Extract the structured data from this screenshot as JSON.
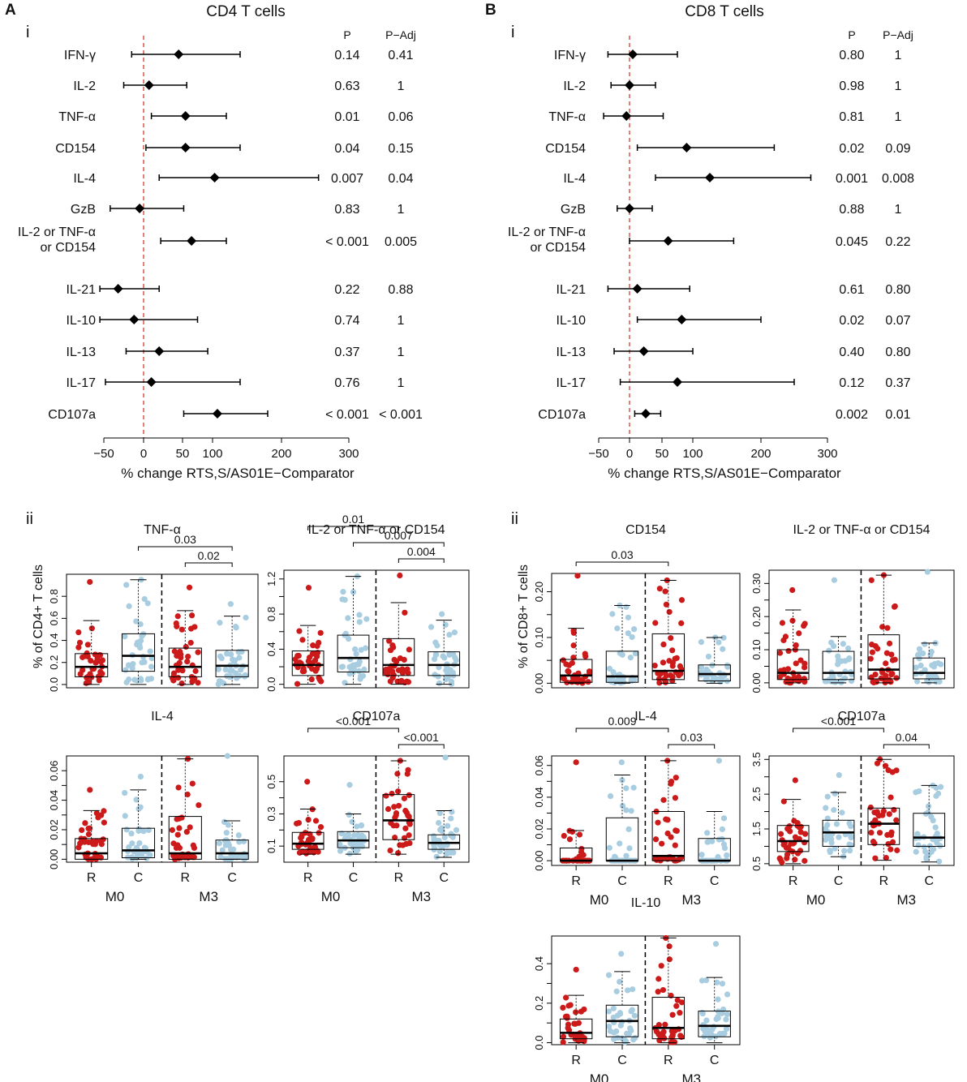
{
  "figure": {
    "panel_a": {
      "letter": "A",
      "title": "CD4 T cells",
      "sub_i": "i",
      "sub_ii": "ii"
    },
    "panel_b": {
      "letter": "B",
      "title": "CD8 T cells",
      "sub_i": "i",
      "sub_ii": "ii"
    },
    "x_axis_label": "% change RTS,S/AS01E−Comparator",
    "col_p": "P",
    "col_padj": "P−Adj",
    "y_label_cd4": "% of CD4+ T cells",
    "y_label_cd8": "% of CD8+ T cells",
    "group_r": "R",
    "group_c": "C",
    "time_m0": "M0",
    "time_m3": "M3"
  },
  "colors": {
    "red": "#cc1a1a",
    "blue": "#a8cce0",
    "black": "#000000",
    "ref_line": "#d9392f"
  },
  "chart_data": [
    {
      "id": "cd4-forest",
      "type": "forest",
      "title": "CD4 T cells",
      "xlabel": "% change RTS,S/AS01E−Comparator",
      "xlim": [
        -50,
        300
      ],
      "xticks": [
        "−50",
        "0",
        "50",
        "100",
        "200",
        "300"
      ],
      "rows": [
        {
          "label": "IFN-γ",
          "est": 45,
          "lo": -15,
          "hi": 140,
          "p": "0.14",
          "padj": "0.41"
        },
        {
          "label": "IL-2",
          "est": 7,
          "lo": -25,
          "hi": 57,
          "p": "0.63",
          "padj": "1"
        },
        {
          "label": "TNF-α",
          "est": 55,
          "lo": 10,
          "hi": 120,
          "p": "0.01",
          "padj": "0.06"
        },
        {
          "label": "CD154",
          "est": 55,
          "lo": 3,
          "hi": 140,
          "p": "0.04",
          "padj": "0.15"
        },
        {
          "label": "IL-4",
          "est": 103,
          "lo": 20,
          "hi": 255,
          "p": "0.007",
          "padj": "0.04"
        },
        {
          "label": "GzB",
          "est": -5,
          "lo": -42,
          "hi": 52,
          "p": "0.83",
          "padj": "1"
        },
        {
          "label": "IL-2 or TNF-α or CD154",
          "est": 65,
          "lo": 22,
          "hi": 120,
          "p": "< 0.001",
          "padj": "0.005"
        },
        {
          "label": "IL-21",
          "est": -32,
          "lo": -55,
          "hi": 20,
          "p": "0.22",
          "padj": "0.88"
        },
        {
          "label": "IL-10",
          "est": -12,
          "lo": -55,
          "hi": 75,
          "p": "0.74",
          "padj": "1"
        },
        {
          "label": "IL-13",
          "est": 20,
          "lo": -22,
          "hi": 92,
          "p": "0.37",
          "padj": "1"
        },
        {
          "label": "IL-17",
          "est": 10,
          "lo": -48,
          "hi": 140,
          "p": "0.76",
          "padj": "1"
        },
        {
          "label": "CD107a",
          "est": 107,
          "lo": 52,
          "hi": 180,
          "p": "< 0.001",
          "padj": "< 0.001"
        }
      ]
    },
    {
      "id": "cd8-forest",
      "type": "forest",
      "title": "CD8 T cells",
      "xlabel": "% change RTS,S/AS01E−Comparator",
      "xlim": [
        -50,
        300
      ],
      "xticks": [
        "−50",
        "0",
        "50",
        "100",
        "200",
        "300"
      ],
      "rows": [
        {
          "label": "IFN-γ",
          "est": 5,
          "lo": -35,
          "hi": 75,
          "p": "0.80",
          "padj": "1"
        },
        {
          "label": "IL-2",
          "est": 0,
          "lo": -30,
          "hi": 40,
          "p": "0.98",
          "padj": "1"
        },
        {
          "label": "TNF-α",
          "est": -5,
          "lo": -42,
          "hi": 52,
          "p": "0.81",
          "padj": "1"
        },
        {
          "label": "CD154",
          "est": 90,
          "lo": 12,
          "hi": 220,
          "p": "0.02",
          "padj": "0.09"
        },
        {
          "label": "IL-4",
          "est": 125,
          "lo": 40,
          "hi": 275,
          "p": "0.001",
          "padj": "0.008"
        },
        {
          "label": "GzB",
          "est": 0,
          "lo": -20,
          "hi": 35,
          "p": "0.88",
          "padj": "1"
        },
        {
          "label": "IL-2 or TNF-α or CD154",
          "est": 60,
          "lo": 0,
          "hi": 160,
          "p": "0.045",
          "padj": "0.22"
        },
        {
          "label": "IL-21",
          "est": 12,
          "lo": -35,
          "hi": 95,
          "p": "0.61",
          "padj": "0.80"
        },
        {
          "label": "IL-10",
          "est": 82,
          "lo": 12,
          "hi": 200,
          "p": "0.02",
          "padj": "0.07"
        },
        {
          "label": "IL-13",
          "est": 22,
          "lo": -25,
          "hi": 100,
          "p": "0.40",
          "padj": "0.80"
        },
        {
          "label": "IL-17",
          "est": 75,
          "lo": -15,
          "hi": 250,
          "p": "0.12",
          "padj": "0.37"
        },
        {
          "label": "CD107a",
          "est": 25,
          "lo": 8,
          "hi": 48,
          "p": "0.002",
          "padj": "0.01"
        }
      ]
    },
    {
      "id": "cd4-tnfa",
      "type": "box",
      "title": "TNF-α",
      "ylim": [
        -0.03,
        1.0
      ],
      "yticks": [
        "0.0",
        "0.2",
        "0.4",
        "0.6",
        "0.8"
      ],
      "ytick_values": [
        0,
        0.2,
        0.4,
        0.6,
        0.8
      ],
      "groups": [
        {
          "label": "R",
          "time": "M0",
          "color": "red",
          "wlo": 0.0,
          "q1": 0.07,
          "med": 0.16,
          "q3": 0.28,
          "whi": 0.58,
          "max": 0.93
        },
        {
          "label": "C",
          "time": "M0",
          "color": "blue",
          "wlo": 0.0,
          "q1": 0.12,
          "med": 0.26,
          "q3": 0.46,
          "whi": 0.95,
          "max": 0.95
        },
        {
          "label": "R",
          "time": "M3",
          "color": "red",
          "wlo": 0.0,
          "q1": 0.07,
          "med": 0.16,
          "q3": 0.33,
          "whi": 0.67,
          "max": 0.88
        },
        {
          "label": "C",
          "time": "M3",
          "color": "blue",
          "wlo": 0.0,
          "q1": 0.07,
          "med": 0.17,
          "q3": 0.31,
          "whi": 0.62,
          "max": 0.73
        }
      ],
      "brackets": [
        {
          "from": 1,
          "to": 3,
          "label": "0.03"
        },
        {
          "from": 2,
          "to": 3,
          "label": "0.02"
        }
      ]
    },
    {
      "id": "cd4-il2comb",
      "type": "box",
      "title": "IL-2 or TNF-α or CD154",
      "ylim": [
        -0.04,
        1.3
      ],
      "yticks": [
        "0.0",
        "0.4",
        "0.8",
        "1.2"
      ],
      "ytick_values": [
        0,
        0.2,
        0.4,
        0.6,
        0.8,
        1.0,
        1.2
      ],
      "ytick_labels_all": [
        "0.0",
        "",
        "0.4",
        "",
        "0.8",
        "",
        "1.2"
      ],
      "groups": [
        {
          "label": "R",
          "time": "M0",
          "color": "red",
          "wlo": 0.0,
          "q1": 0.1,
          "med": 0.22,
          "q3": 0.38,
          "whi": 0.67,
          "max": 1.1
        },
        {
          "label": "C",
          "time": "M0",
          "color": "blue",
          "wlo": 0.0,
          "q1": 0.14,
          "med": 0.3,
          "q3": 0.56,
          "whi": 1.23,
          "max": 1.23
        },
        {
          "label": "R",
          "time": "M3",
          "color": "red",
          "wlo": 0.0,
          "q1": 0.1,
          "med": 0.22,
          "q3": 0.52,
          "whi": 0.93,
          "max": 1.24
        },
        {
          "label": "C",
          "time": "M3",
          "color": "blue",
          "wlo": 0.0,
          "q1": 0.1,
          "med": 0.22,
          "q3": 0.37,
          "whi": 0.73,
          "max": 0.8
        }
      ],
      "brackets": [
        {
          "from": 0,
          "to": 2,
          "label": "0.01"
        },
        {
          "from": 1,
          "to": 3,
          "label": "0.007"
        },
        {
          "from": 2,
          "to": 3,
          "label": "0.004"
        }
      ]
    },
    {
      "id": "cd4-il4",
      "type": "box",
      "title": "IL-4",
      "ylim": [
        -0.002,
        0.07
      ],
      "yticks": [
        "0.00",
        "0.02",
        "0.04",
        "0.06"
      ],
      "ytick_values": [
        0,
        0.01,
        0.02,
        0.03,
        0.04,
        0.05,
        0.06
      ],
      "ytick_labels_all": [
        "0.00",
        "",
        "0.02",
        "",
        "0.04",
        "",
        "0.06"
      ],
      "groups": [
        {
          "label": "R",
          "time": "M0",
          "color": "red",
          "wlo": 0.0,
          "q1": 0.0,
          "med": 0.004,
          "q3": 0.014,
          "whi": 0.033,
          "max": 0.047
        },
        {
          "label": "C",
          "time": "M0",
          "color": "blue",
          "wlo": 0.0,
          "q1": 0.001,
          "med": 0.006,
          "q3": 0.021,
          "whi": 0.047,
          "max": 0.056
        },
        {
          "label": "R",
          "time": "M3",
          "color": "red",
          "wlo": 0.0,
          "q1": 0.0,
          "med": 0.004,
          "q3": 0.029,
          "whi": 0.068,
          "max": 0.068
        },
        {
          "label": "C",
          "time": "M3",
          "color": "blue",
          "wlo": 0.0,
          "q1": 0.0,
          "med": 0.004,
          "q3": 0.013,
          "whi": 0.026,
          "max": 0.07
        }
      ],
      "brackets": []
    },
    {
      "id": "cd4-cd107a",
      "type": "box",
      "title": "CD107a",
      "ylim": [
        0.0,
        0.66
      ],
      "yticks": [
        "0.1",
        "0.3",
        "0.5"
      ],
      "ytick_values": [
        0.1,
        0.2,
        0.3,
        0.4,
        0.5
      ],
      "ytick_labels_all": [
        "0.1",
        "",
        "0.3",
        "",
        "0.5"
      ],
      "groups": [
        {
          "label": "R",
          "time": "M0",
          "color": "red",
          "wlo": 0.05,
          "q1": 0.08,
          "med": 0.115,
          "q3": 0.185,
          "whi": 0.33,
          "max": 0.5
        },
        {
          "label": "C",
          "time": "M0",
          "color": "blue",
          "wlo": 0.05,
          "q1": 0.09,
          "med": 0.135,
          "q3": 0.19,
          "whi": 0.3,
          "max": 0.48
        },
        {
          "label": "R",
          "time": "M3",
          "color": "red",
          "wlo": 0.05,
          "q1": 0.14,
          "med": 0.26,
          "q3": 0.42,
          "whi": 0.63,
          "max": 0.63
        },
        {
          "label": "C",
          "time": "M3",
          "color": "blue",
          "wlo": 0.03,
          "q1": 0.08,
          "med": 0.12,
          "q3": 0.17,
          "whi": 0.32,
          "max": 0.65
        }
      ],
      "brackets": [
        {
          "from": 0,
          "to": 2,
          "label": "<0.001"
        },
        {
          "from": 2,
          "to": 3,
          "label": "<0.001"
        }
      ]
    },
    {
      "id": "cd8-cd154",
      "type": "box",
      "title": "CD154",
      "ylim": [
        -0.01,
        0.24
      ],
      "yticks": [
        "0.00",
        "0.10",
        "0.20"
      ],
      "ytick_values": [
        0,
        0.05,
        0.1,
        0.15,
        0.2
      ],
      "ytick_labels_all": [
        "0.00",
        "",
        "0.10",
        "",
        "0.20"
      ],
      "groups": [
        {
          "label": "R",
          "time": "M0",
          "color": "red",
          "wlo": 0.0,
          "q1": 0.002,
          "med": 0.017,
          "q3": 0.052,
          "whi": 0.12,
          "max": 0.235
        },
        {
          "label": "C",
          "time": "M0",
          "color": "blue",
          "wlo": 0.0,
          "q1": 0.002,
          "med": 0.015,
          "q3": 0.07,
          "whi": 0.17,
          "max": 0.17
        },
        {
          "label": "R",
          "time": "M3",
          "color": "red",
          "wlo": 0.0,
          "q1": 0.008,
          "med": 0.027,
          "q3": 0.108,
          "whi": 0.225,
          "max": 0.225
        },
        {
          "label": "C",
          "time": "M3",
          "color": "blue",
          "wlo": 0.0,
          "q1": 0.005,
          "med": 0.02,
          "q3": 0.04,
          "whi": 0.1,
          "max": 0.1
        }
      ],
      "brackets": [
        {
          "from": 0,
          "to": 2,
          "label": "0.03"
        }
      ]
    },
    {
      "id": "cd8-il2comb",
      "type": "box",
      "title": "IL-2 or TNF-α or CD154",
      "ylim": [
        -0.015,
        0.34
      ],
      "yticks": [
        "0.00",
        "0.10",
        "0.20",
        "0.30"
      ],
      "ytick_values": [
        0,
        0.05,
        0.1,
        0.15,
        0.2,
        0.25,
        0.3
      ],
      "ytick_labels_all": [
        "0.00",
        "",
        "0.10",
        "",
        "0.20",
        "",
        "0.30"
      ],
      "groups": [
        {
          "label": "R",
          "time": "M0",
          "color": "red",
          "wlo": 0.0,
          "q1": 0.01,
          "med": 0.03,
          "q3": 0.1,
          "whi": 0.22,
          "max": 0.28
        },
        {
          "label": "C",
          "time": "M0",
          "color": "blue",
          "wlo": 0.0,
          "q1": 0.01,
          "med": 0.03,
          "q3": 0.095,
          "whi": 0.14,
          "max": 0.31
        },
        {
          "label": "R",
          "time": "M3",
          "color": "red",
          "wlo": 0.0,
          "q1": 0.012,
          "med": 0.04,
          "q3": 0.145,
          "whi": 0.325,
          "max": 0.325
        },
        {
          "label": "C",
          "time": "M3",
          "color": "blue",
          "wlo": 0.0,
          "q1": 0.012,
          "med": 0.03,
          "q3": 0.075,
          "whi": 0.12,
          "max": 0.335
        }
      ],
      "brackets": []
    },
    {
      "id": "cd8-il4",
      "type": "box",
      "title": "IL-4",
      "ylim": [
        -0.003,
        0.066
      ],
      "yticks": [
        "0.00",
        "0.02",
        "0.04",
        "0.06"
      ],
      "ytick_values": [
        0,
        0.01,
        0.02,
        0.03,
        0.04,
        0.05,
        0.06
      ],
      "ytick_labels_all": [
        "0.00",
        "",
        "0.02",
        "",
        "0.04",
        "",
        "0.06"
      ],
      "groups": [
        {
          "label": "R",
          "time": "M0",
          "color": "red",
          "wlo": 0.0,
          "q1": 0.0,
          "med": 0.0,
          "q3": 0.008,
          "whi": 0.019,
          "max": 0.062
        },
        {
          "label": "C",
          "time": "M0",
          "color": "blue",
          "wlo": 0.0,
          "q1": 0.0,
          "med": 0.0,
          "q3": 0.027,
          "whi": 0.054,
          "max": 0.062
        },
        {
          "label": "R",
          "time": "M3",
          "color": "red",
          "wlo": 0.0,
          "q1": 0.0,
          "med": 0.003,
          "q3": 0.031,
          "whi": 0.063,
          "max": 0.063
        },
        {
          "label": "C",
          "time": "M3",
          "color": "blue",
          "wlo": 0.0,
          "q1": 0.0,
          "med": 0.0,
          "q3": 0.014,
          "whi": 0.031,
          "max": 0.063
        }
      ],
      "brackets": [
        {
          "from": 0,
          "to": 2,
          "label": "0.009"
        },
        {
          "from": 2,
          "to": 3,
          "label": "0.03"
        }
      ]
    },
    {
      "id": "cd8-cd107a",
      "type": "box",
      "title": "CD107a",
      "ylim": [
        0.45,
        3.6
      ],
      "yticks": [
        "0.5",
        "1.5",
        "2.5",
        "3.5"
      ],
      "ytick_values": [
        0.5,
        1.0,
        1.5,
        2.0,
        2.5,
        3.0,
        3.5
      ],
      "ytick_labels_all": [
        "0.5",
        "",
        "1.5",
        "",
        "2.5",
        "",
        "3.5"
      ],
      "groups": [
        {
          "label": "R",
          "time": "M0",
          "color": "red",
          "wlo": 0.5,
          "q1": 0.85,
          "med": 1.15,
          "q3": 1.6,
          "whi": 2.35,
          "max": 2.9
        },
        {
          "label": "C",
          "time": "M0",
          "color": "blue",
          "wlo": 0.7,
          "q1": 1.0,
          "med": 1.4,
          "q3": 1.75,
          "whi": 2.55,
          "max": 3.05
        },
        {
          "label": "R",
          "time": "M3",
          "color": "red",
          "wlo": 0.6,
          "q1": 1.05,
          "med": 1.65,
          "q3": 2.1,
          "whi": 3.5,
          "max": 3.5
        },
        {
          "label": "C",
          "time": "M3",
          "color": "blue",
          "wlo": 0.55,
          "q1": 1.0,
          "med": 1.25,
          "q3": 1.95,
          "whi": 2.75,
          "max": 2.75
        }
      ],
      "brackets": [
        {
          "from": 0,
          "to": 2,
          "label": "<0.001"
        },
        {
          "from": 2,
          "to": 3,
          "label": "0.04"
        }
      ]
    },
    {
      "id": "cd8-il10",
      "type": "box",
      "title": "IL-10",
      "ylim": [
        -0.01,
        0.54
      ],
      "yticks": [
        "0.0",
        "0.2",
        "0.4"
      ],
      "ytick_values": [
        0,
        0.1,
        0.2,
        0.3,
        0.4
      ],
      "ytick_labels_all": [
        "0.0",
        "",
        "0.2",
        "",
        "0.4"
      ],
      "groups": [
        {
          "label": "R",
          "time": "M0",
          "color": "red",
          "wlo": 0.0,
          "q1": 0.02,
          "med": 0.05,
          "q3": 0.12,
          "whi": 0.24,
          "max": 0.37
        },
        {
          "label": "C",
          "time": "M0",
          "color": "blue",
          "wlo": 0.0,
          "q1": 0.03,
          "med": 0.11,
          "q3": 0.19,
          "whi": 0.36,
          "max": 0.45
        },
        {
          "label": "R",
          "time": "M3",
          "color": "red",
          "wlo": 0.0,
          "q1": 0.02,
          "med": 0.075,
          "q3": 0.23,
          "whi": 0.53,
          "max": 0.53
        },
        {
          "label": "C",
          "time": "M3",
          "color": "blue",
          "wlo": 0.0,
          "q1": 0.03,
          "med": 0.085,
          "q3": 0.16,
          "whi": 0.33,
          "max": 0.5
        }
      ],
      "brackets": []
    }
  ]
}
